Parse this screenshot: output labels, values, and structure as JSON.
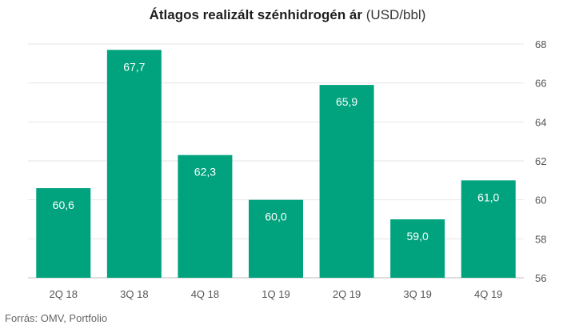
{
  "chart_data": {
    "type": "bar",
    "title": "Átlagos realizált szénhidrogén ár",
    "title_unit": "(USD/bbl)",
    "categories": [
      "2Q 18",
      "3Q 18",
      "4Q 18",
      "1Q 19",
      "2Q 19",
      "3Q 19",
      "4Q 19"
    ],
    "values": [
      60.6,
      67.7,
      62.3,
      60.0,
      65.9,
      59.0,
      61.0
    ],
    "data_labels": [
      "60,6",
      "67,7",
      "62,3",
      "60,0",
      "65,9",
      "59,0",
      "61,0"
    ],
    "ylim": [
      56,
      68
    ],
    "yticks": [
      56,
      58,
      60,
      62,
      64,
      66,
      68
    ],
    "y_axis_position": "right",
    "grid": true,
    "xlabel": "",
    "ylabel": "",
    "bar_color": "#00a37e",
    "grid_color": "#e6e6e6",
    "label_color": "#ffffff",
    "source": "Forrás: OMV, Portfolio"
  }
}
